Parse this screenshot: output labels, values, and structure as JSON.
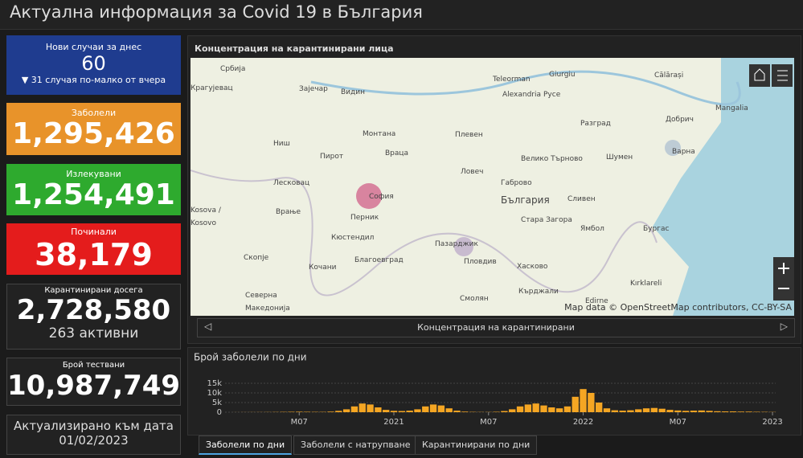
{
  "header": {
    "title": "Актуална информация за Covid 19 в България"
  },
  "cards": [
    {
      "label": "Нови случаи за днес",
      "value": "60",
      "note": "▼ 31 случая по-малко от вчера"
    },
    {
      "label": "Заболели",
      "value": "1,295,426"
    },
    {
      "label": "Излекувани",
      "value": "1,254,491"
    },
    {
      "label": "Починали",
      "value": "38,179"
    },
    {
      "label": "Карантинирани досега",
      "value": "2,728,580",
      "note": "263 активни"
    },
    {
      "label": "Брой тествани",
      "value": "10,987,749"
    },
    {
      "label": "Актуализирано към дата",
      "value": "01/02/2023"
    }
  ],
  "map": {
    "title": "Концентрация на карантинирани лица",
    "caption": "Концентрация на карантинирани",
    "attribution": "Map data © OpenStreetMap contributors, CC-BY-SA",
    "labels": [
      "Србија",
      "Видин",
      "Монтана",
      "Плевен",
      "Враца",
      "Ловеч",
      "Велико Търново",
      "Шумен",
      "Варна",
      "Добрич",
      "Русе",
      "Разград",
      "София",
      "Перник",
      "Габрово",
      "България",
      "Сливен",
      "Стара Загора",
      "Ямбол",
      "Бургас",
      "Пазарджик",
      "Пловдив",
      "Хасково",
      "Кърджали",
      "Смолян",
      "Благоевград",
      "Кюстендил",
      "Скопје",
      "Северна",
      "Македонија",
      "Kosova /",
      "Kosovo",
      "Alexandria",
      "Mangalia",
      "Kırklareli",
      "Edirne",
      "Teleorman",
      "Giurgiu",
      "Călărași",
      "Крагујевац",
      "Ниш",
      "Пирот",
      "Лесковац",
      "Врање",
      "Кочани",
      "Зајечар"
    ]
  },
  "chart_data": {
    "type": "bar",
    "title": "Брой заболели по дни",
    "color": "#f5a623",
    "x": [
      2,
      2.5,
      3,
      3.5,
      4,
      4.5,
      5,
      5.5,
      6,
      6.5,
      7,
      7.5,
      8,
      8.5,
      9,
      9.5,
      10,
      10.5,
      11,
      11.5,
      12,
      12.5,
      13,
      13.5,
      14,
      14.5,
      15,
      15.5,
      16,
      16.5,
      17,
      17.5,
      18,
      18.5,
      19,
      19.5,
      20,
      20.5,
      21,
      21.5,
      22,
      22.5,
      23,
      23.5,
      24,
      24.5,
      25,
      25.5,
      26,
      26.5,
      27,
      27.5,
      28,
      28.5,
      29,
      29.5,
      30,
      30.5,
      31,
      31.5,
      32,
      32.5,
      33,
      33.5,
      34,
      34.5,
      35,
      35.5,
      36
    ],
    "values": [
      20,
      40,
      50,
      60,
      80,
      100,
      150,
      200,
      250,
      200,
      150,
      150,
      300,
      700,
      1500,
      3000,
      4500,
      4000,
      2500,
      1200,
      700,
      600,
      800,
      1500,
      3000,
      4000,
      3500,
      2000,
      800,
      300,
      150,
      100,
      100,
      200,
      600,
      1500,
      3000,
      4000,
      4500,
      3500,
      2500,
      2000,
      3000,
      8000,
      12000,
      10000,
      5000,
      2000,
      1000,
      800,
      1000,
      1500,
      2000,
      2200,
      1800,
      1200,
      900,
      700,
      800,
      900,
      700,
      500,
      400,
      400,
      300,
      300,
      200,
      150,
      100
    ],
    "xlim": [
      1.3,
      36.2
    ],
    "xticks": [
      {
        "value": 6,
        "label": "M07"
      },
      {
        "value": 12,
        "label": "2021"
      },
      {
        "value": 18,
        "label": "M07"
      },
      {
        "value": 24,
        "label": "2022"
      },
      {
        "value": 30,
        "label": "M07"
      },
      {
        "value": 36,
        "label": "2023"
      }
    ],
    "ylim": [
      0,
      15000
    ],
    "yticks": [
      {
        "value": 0,
        "label": "0"
      },
      {
        "value": 5000,
        "label": "5k"
      },
      {
        "value": 10000,
        "label": "10k"
      },
      {
        "value": 15000,
        "label": "15k"
      }
    ],
    "grid": true
  },
  "tabs": [
    "Заболели по дни",
    "Заболели с натрупване",
    "Карантинирани по дни"
  ]
}
